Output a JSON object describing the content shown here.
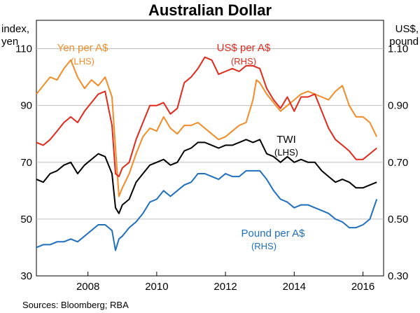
{
  "chart_data": {
    "type": "line",
    "title": "Australian Dollar",
    "left_axis": {
      "label_lines": [
        "index,",
        "yen"
      ],
      "ylim": [
        30,
        120
      ],
      "ticks": [
        110,
        90,
        70,
        50,
        30
      ],
      "tick_labels": [
        "110",
        "90",
        "70",
        "50",
        "30"
      ]
    },
    "right_axis": {
      "label_lines": [
        "US$,",
        "pound"
      ],
      "ylim": [
        0.3,
        1.2
      ],
      "ticks": [
        1.1,
        0.9,
        0.7,
        0.5,
        0.3
      ],
      "tick_labels": [
        "1.10",
        "0.90",
        "0.70",
        "0.50",
        "0.30"
      ]
    },
    "x_axis": {
      "xlim": [
        2006.5,
        2016.6
      ],
      "ticks": [
        2008,
        2010,
        2012,
        2014,
        2016
      ],
      "tick_labels": [
        "2008",
        "2010",
        "2012",
        "2014",
        "2016"
      ]
    },
    "grid": true,
    "series": [
      {
        "name": "Yen per A$",
        "axis_note": "(LHS)",
        "axis": "left",
        "color": "#f28c28",
        "x": [
          2006.5,
          2006.7,
          2006.9,
          2007.1,
          2007.3,
          2007.5,
          2007.7,
          2007.9,
          2008.1,
          2008.3,
          2008.5,
          2008.7,
          2008.8,
          2008.9,
          2009.0,
          2009.2,
          2009.4,
          2009.6,
          2009.8,
          2010.0,
          2010.2,
          2010.4,
          2010.6,
          2010.8,
          2011.0,
          2011.2,
          2011.4,
          2011.6,
          2011.8,
          2012.0,
          2012.2,
          2012.4,
          2012.6,
          2012.8,
          2012.9,
          2013.0,
          2013.2,
          2013.4,
          2013.6,
          2013.8,
          2014.0,
          2014.2,
          2014.4,
          2014.6,
          2014.8,
          2015.0,
          2015.2,
          2015.4,
          2015.6,
          2015.8,
          2016.0,
          2016.2,
          2016.4
        ],
        "y": [
          94,
          97,
          100,
          99,
          103,
          106,
          100,
          96,
          99,
          97,
          100,
          93,
          75,
          58,
          61,
          66,
          73,
          79,
          82,
          81,
          86,
          82,
          80,
          83,
          83,
          84,
          82,
          80,
          78,
          79,
          81,
          83,
          84,
          92,
          99,
          98,
          94,
          91,
          88,
          90,
          92,
          94,
          95,
          94,
          93,
          92,
          95,
          97,
          90,
          86,
          86,
          84,
          79
        ]
      },
      {
        "name": "US$ per A$",
        "axis_note": "(RHS)",
        "axis": "right",
        "color": "#e02a1c",
        "x": [
          2006.5,
          2006.7,
          2006.9,
          2007.1,
          2007.3,
          2007.5,
          2007.7,
          2007.9,
          2008.1,
          2008.3,
          2008.5,
          2008.7,
          2008.8,
          2008.9,
          2009.0,
          2009.2,
          2009.4,
          2009.6,
          2009.8,
          2010.0,
          2010.2,
          2010.4,
          2010.6,
          2010.8,
          2011.0,
          2011.2,
          2011.4,
          2011.6,
          2011.8,
          2012.0,
          2012.2,
          2012.4,
          2012.6,
          2012.8,
          2013.0,
          2013.2,
          2013.4,
          2013.6,
          2013.8,
          2014.0,
          2014.2,
          2014.4,
          2014.6,
          2014.8,
          2015.0,
          2015.2,
          2015.4,
          2015.6,
          2015.8,
          2016.0,
          2016.2,
          2016.4
        ],
        "y": [
          0.77,
          0.76,
          0.78,
          0.81,
          0.84,
          0.86,
          0.84,
          0.88,
          0.91,
          0.94,
          0.95,
          0.83,
          0.66,
          0.65,
          0.68,
          0.7,
          0.78,
          0.84,
          0.9,
          0.9,
          0.91,
          0.87,
          0.89,
          0.98,
          1.0,
          1.03,
          1.07,
          1.06,
          1.01,
          1.02,
          1.03,
          1.02,
          1.04,
          1.04,
          1.03,
          0.96,
          0.92,
          0.89,
          0.93,
          0.88,
          0.93,
          0.93,
          0.94,
          0.88,
          0.82,
          0.78,
          0.76,
          0.74,
          0.71,
          0.71,
          0.73,
          0.75
        ]
      },
      {
        "name": "TWI",
        "axis_note": "(LHS)",
        "axis": "left",
        "color": "#000000",
        "x": [
          2006.5,
          2006.7,
          2006.9,
          2007.1,
          2007.3,
          2007.5,
          2007.7,
          2007.9,
          2008.1,
          2008.3,
          2008.5,
          2008.7,
          2008.8,
          2008.9,
          2009.0,
          2009.2,
          2009.4,
          2009.6,
          2009.8,
          2010.0,
          2010.2,
          2010.4,
          2010.6,
          2010.8,
          2011.0,
          2011.2,
          2011.4,
          2011.6,
          2011.8,
          2012.0,
          2012.2,
          2012.4,
          2012.6,
          2012.8,
          2013.0,
          2013.2,
          2013.4,
          2013.6,
          2013.8,
          2014.0,
          2014.2,
          2014.4,
          2014.6,
          2014.8,
          2015.0,
          2015.2,
          2015.4,
          2015.6,
          2015.8,
          2016.0,
          2016.2,
          2016.4
        ],
        "y": [
          64,
          63,
          66,
          67,
          69,
          70,
          66,
          69,
          71,
          73,
          72,
          66,
          54,
          52,
          55,
          57,
          63,
          66,
          69,
          70,
          71,
          69,
          70,
          74,
          75,
          77,
          77,
          76,
          75,
          76,
          76,
          77,
          78,
          77,
          78,
          73,
          72,
          70,
          72,
          70,
          71,
          70,
          70,
          67,
          65,
          63,
          64,
          63,
          61,
          61,
          62,
          63
        ]
      },
      {
        "name": "Pound per A$",
        "axis_note": "(RHS)",
        "axis": "right",
        "color": "#1f6fbf",
        "x": [
          2006.5,
          2006.7,
          2006.9,
          2007.1,
          2007.3,
          2007.5,
          2007.7,
          2007.9,
          2008.1,
          2008.3,
          2008.5,
          2008.7,
          2008.8,
          2008.9,
          2009.0,
          2009.2,
          2009.4,
          2009.6,
          2009.8,
          2010.0,
          2010.2,
          2010.4,
          2010.6,
          2010.8,
          2011.0,
          2011.2,
          2011.4,
          2011.6,
          2011.8,
          2012.0,
          2012.2,
          2012.4,
          2012.6,
          2012.8,
          2013.0,
          2013.2,
          2013.4,
          2013.6,
          2013.8,
          2014.0,
          2014.2,
          2014.4,
          2014.6,
          2014.8,
          2015.0,
          2015.2,
          2015.4,
          2015.6,
          2015.8,
          2016.0,
          2016.2,
          2016.4
        ],
        "y": [
          0.4,
          0.41,
          0.41,
          0.42,
          0.42,
          0.43,
          0.42,
          0.44,
          0.46,
          0.48,
          0.48,
          0.46,
          0.39,
          0.43,
          0.44,
          0.47,
          0.49,
          0.52,
          0.56,
          0.57,
          0.6,
          0.58,
          0.6,
          0.62,
          0.63,
          0.66,
          0.66,
          0.65,
          0.64,
          0.66,
          0.65,
          0.65,
          0.67,
          0.67,
          0.67,
          0.64,
          0.6,
          0.57,
          0.56,
          0.54,
          0.55,
          0.55,
          0.54,
          0.53,
          0.52,
          0.5,
          0.49,
          0.47,
          0.47,
          0.48,
          0.5,
          0.57
        ]
      }
    ],
    "source": "Sources:   Bloomberg; RBA"
  }
}
